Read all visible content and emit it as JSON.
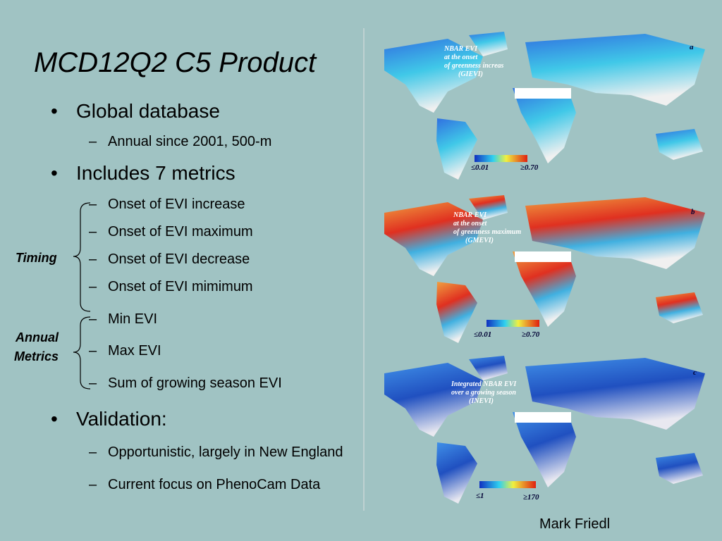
{
  "title": "MCD12Q2 C5 Product",
  "bullets": [
    {
      "text": "Global database",
      "subitems": [
        "Annual since 2001, 500-m"
      ]
    },
    {
      "text": "Includes 7 metrics",
      "subitems": [
        "Onset of EVI increase",
        "Onset of EVI maximum",
        "Onset of EVI decrease",
        "Onset of EVI mimimum",
        "Min EVI",
        "Max EVI",
        "Sum of growing season EVI"
      ]
    },
    {
      "text": "Validation:",
      "subitems": [
        "Opportunistic, largely in New England",
        "Current focus on PhenoCam Data"
      ]
    }
  ],
  "brackets": [
    {
      "lines": [
        "Timing"
      ]
    },
    {
      "lines": [
        "Annual",
        "Metrics"
      ]
    }
  ],
  "maps": [
    {
      "panel": "a",
      "caption": [
        "NBAR EVI",
        "at the onset",
        "of greenness increas",
        "(GIEVI)"
      ],
      "scale_min": "≤0.01",
      "scale_max": "≥0.70"
    },
    {
      "panel": "b",
      "caption": [
        "NBAR EVI",
        "at the onset",
        "of greenness maximum",
        "(GMEVI)"
      ],
      "scale_min": "≤0.01",
      "scale_max": "≥0.70"
    },
    {
      "panel": "c",
      "caption": [
        "Integrated NBAR EVI",
        "over a growing season",
        "(INEVI)"
      ],
      "scale_min": "≤1",
      "scale_max": "≥170"
    }
  ],
  "author": "Mark Friedl"
}
